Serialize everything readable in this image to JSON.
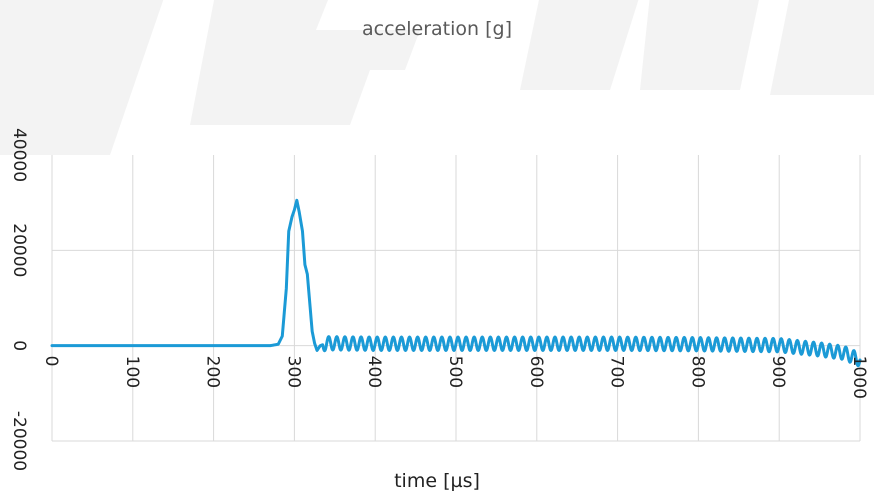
{
  "chart_data": {
    "type": "line",
    "title": "acceleration [g]",
    "xlabel": "time [µs]",
    "ylabel": "",
    "xlim": [
      0,
      1000
    ],
    "ylim": [
      -20000,
      40000
    ],
    "x_ticks": [
      "0",
      "100",
      "200",
      "300",
      "400",
      "500",
      "600",
      "700",
      "800",
      "900",
      "1000"
    ],
    "y_ticks": [
      "-20000",
      "0",
      "20000",
      "40000"
    ],
    "grid": true,
    "legend": "none",
    "series_color": "#1b9ad6",
    "series": [
      {
        "points": [
          [
            0,
            0
          ],
          [
            100,
            0
          ],
          [
            200,
            0
          ],
          [
            270,
            0
          ],
          [
            280,
            300
          ],
          [
            285,
            2000
          ],
          [
            290,
            12000
          ],
          [
            293,
            24000
          ],
          [
            297,
            27000
          ],
          [
            300,
            28500
          ],
          [
            303,
            30500
          ],
          [
            306,
            28000
          ],
          [
            310,
            24000
          ],
          [
            313,
            17000
          ],
          [
            316,
            15000
          ],
          [
            319,
            9000
          ],
          [
            322,
            3000
          ],
          [
            325,
            500
          ],
          [
            328,
            -1000
          ],
          [
            332,
            0
          ],
          [
            340,
            500
          ],
          [
            400,
            400
          ],
          [
            500,
            400
          ],
          [
            600,
            400
          ],
          [
            700,
            400
          ],
          [
            800,
            300
          ],
          [
            900,
            100
          ],
          [
            950,
            -800
          ],
          [
            980,
            -1500
          ],
          [
            1000,
            -3000
          ]
        ],
        "oscillation_amplitude": 1400,
        "oscillation_period_us": 10
      }
    ]
  }
}
